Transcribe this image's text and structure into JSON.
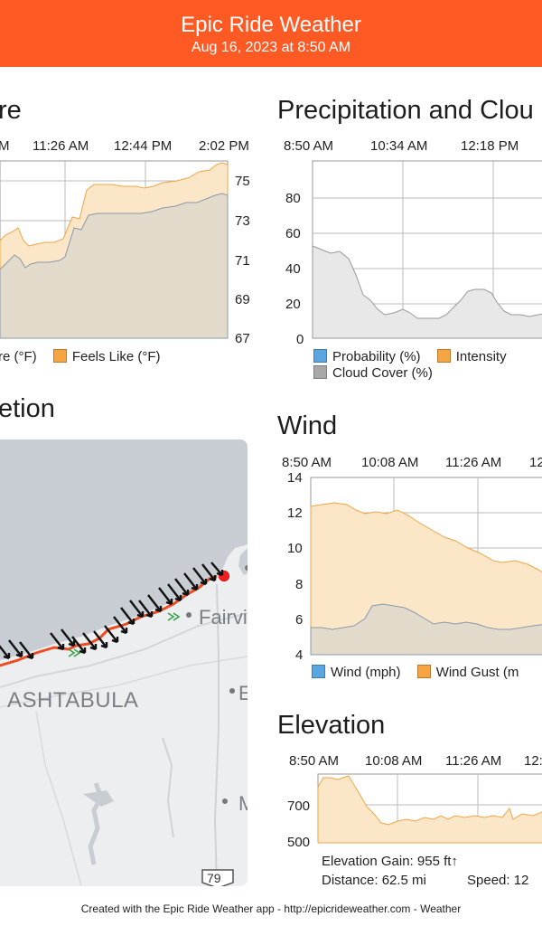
{
  "app": {
    "title": "Epic Ride Weather",
    "timestamp": "Aug 16, 2023 at 8:50 AM",
    "brand_color": "#ff5a24"
  },
  "temperature": {
    "title_fragment": "re",
    "times": [
      "M",
      "11:26 AM",
      "12:44 PM",
      "2:02 PM"
    ],
    "y_ticks": [
      "75",
      "73",
      "71",
      "69",
      "67"
    ],
    "legend": [
      {
        "label": "re (°F)",
        "color": "#7fa3c4"
      },
      {
        "label": "Feels Like (°F)",
        "color": "#f7a443"
      }
    ]
  },
  "precipitation": {
    "title": "Precipitation and Clou",
    "times": [
      "8:50 AM",
      "10:34 AM",
      "12:18 PM"
    ],
    "y_ticks": [
      "80",
      "60",
      "40",
      "20",
      "0"
    ],
    "legend": [
      {
        "label": "Probability (%)",
        "color": "#5aa6e0"
      },
      {
        "label": "Intensity",
        "color": "#f7a443"
      },
      {
        "label": "Cloud Cover (%)",
        "color": "#a8a8a8"
      }
    ]
  },
  "direction": {
    "title_fragment": "etion",
    "map_labels": {
      "city": "ASHTABULA",
      "town": "Fairvi",
      "highway": "79",
      "edge_e": "E",
      "edge_m": "M"
    }
  },
  "wind": {
    "title": "Wind",
    "times": [
      "8:50 AM",
      "10:08 AM",
      "11:26 AM",
      "12"
    ],
    "y_ticks": [
      "14",
      "12",
      "10",
      "8",
      "6",
      "4"
    ],
    "legend": [
      {
        "label": "Wind (mph)",
        "color": "#5aa6e0"
      },
      {
        "label": "Wind Gust (m",
        "color": "#f7a443"
      }
    ]
  },
  "elevation": {
    "title": "Elevation",
    "times": [
      "8:50 AM",
      "10:08 AM",
      "11:26 AM",
      "12:"
    ],
    "y_ticks": [
      "700",
      "500"
    ],
    "gain": "Elevation Gain: 955 ft↑",
    "distance": "Distance: 62.5 mi",
    "speed": "Speed: 12"
  },
  "footer": {
    "text": "Created with the Epic Ride Weather app - http://epicrideweather.com - ",
    "apple_logo": "",
    "weather": "Weather"
  }
}
